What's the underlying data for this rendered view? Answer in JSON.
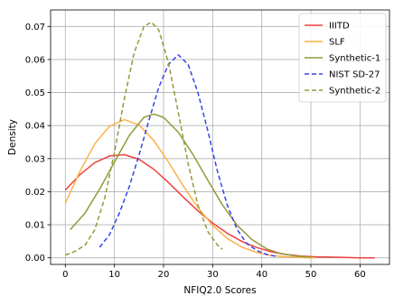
{
  "chart_data": {
    "type": "line",
    "title": "",
    "xlabel": "NFIQ2.0 Scores",
    "ylabel": "Density",
    "xlim": [
      -3,
      66
    ],
    "ylim": [
      -0.002,
      0.075
    ],
    "xticks": [
      0,
      10,
      20,
      30,
      40,
      50,
      60
    ],
    "yticks": [
      0.0,
      0.01,
      0.02,
      0.03,
      0.04,
      0.05,
      0.06,
      0.07
    ],
    "ytick_labels": [
      "0.00",
      "0.01",
      "0.02",
      "0.03",
      "0.04",
      "0.05",
      "0.06",
      "0.07"
    ],
    "grid": true,
    "legend_position": "top-right",
    "series": [
      {
        "name": "IIITD",
        "color": "#ef4040",
        "dash": "solid",
        "x": [
          0,
          3,
          6,
          9,
          12,
          15,
          18,
          21,
          24,
          27,
          30,
          33,
          36,
          39,
          42,
          45,
          48,
          51,
          54,
          57,
          60,
          63
        ],
        "y": [
          0.0205,
          0.0252,
          0.0288,
          0.0308,
          0.0312,
          0.0298,
          0.0268,
          0.0228,
          0.0184,
          0.0142,
          0.0105,
          0.0074,
          0.0049,
          0.0031,
          0.0018,
          0.001,
          0.0005,
          0.0003,
          0.0002,
          0.0001,
          0.0,
          0.0
        ]
      },
      {
        "name": "SLF",
        "color": "#fdb147",
        "dash": "solid",
        "x": [
          0,
          3,
          6,
          9,
          12,
          15,
          18,
          21,
          24,
          27,
          30,
          33,
          36,
          39,
          42,
          45,
          48,
          51
        ],
        "y": [
          0.0165,
          0.0262,
          0.0345,
          0.0398,
          0.0418,
          0.0402,
          0.0355,
          0.029,
          0.0218,
          0.0152,
          0.0098,
          0.0058,
          0.0032,
          0.0016,
          0.0007,
          0.0003,
          0.0001,
          0.0
        ]
      },
      {
        "name": "Synthetic-1",
        "color": "#929a3a",
        "dash": "solid",
        "x": [
          1,
          4,
          7,
          10,
          13,
          16,
          18,
          20,
          23,
          26,
          29,
          32,
          35,
          38,
          41,
          44,
          47,
          50
        ],
        "y": [
          0.0085,
          0.0135,
          0.0208,
          0.029,
          0.037,
          0.0425,
          0.0435,
          0.0425,
          0.038,
          0.0312,
          0.0235,
          0.016,
          0.0098,
          0.0055,
          0.0027,
          0.0012,
          0.0005,
          0.0002
        ]
      },
      {
        "name": "NIST SD-27",
        "color": "#3344ee",
        "dash": "dashed",
        "x": [
          7,
          9,
          11,
          13,
          15,
          17,
          19,
          21,
          23,
          25,
          27,
          29,
          31,
          33,
          35,
          37,
          39,
          41,
          43
        ],
        "y": [
          0.0032,
          0.007,
          0.0135,
          0.0215,
          0.031,
          0.0415,
          0.0515,
          0.0585,
          0.0614,
          0.0585,
          0.05,
          0.0385,
          0.026,
          0.0158,
          0.0085,
          0.0042,
          0.0022,
          0.001,
          0.0004
        ]
      },
      {
        "name": "Synthetic-2",
        "color": "#929a3a",
        "dash": "dashed",
        "x": [
          0,
          2,
          4,
          6,
          8,
          10,
          12,
          14,
          16,
          17.5,
          19,
          21,
          23,
          25,
          27,
          29,
          31,
          32
        ],
        "y": [
          0.0008,
          0.002,
          0.0038,
          0.0085,
          0.018,
          0.032,
          0.048,
          0.062,
          0.07,
          0.0713,
          0.069,
          0.059,
          0.044,
          0.0285,
          0.016,
          0.008,
          0.0038,
          0.0026
        ]
      }
    ]
  }
}
